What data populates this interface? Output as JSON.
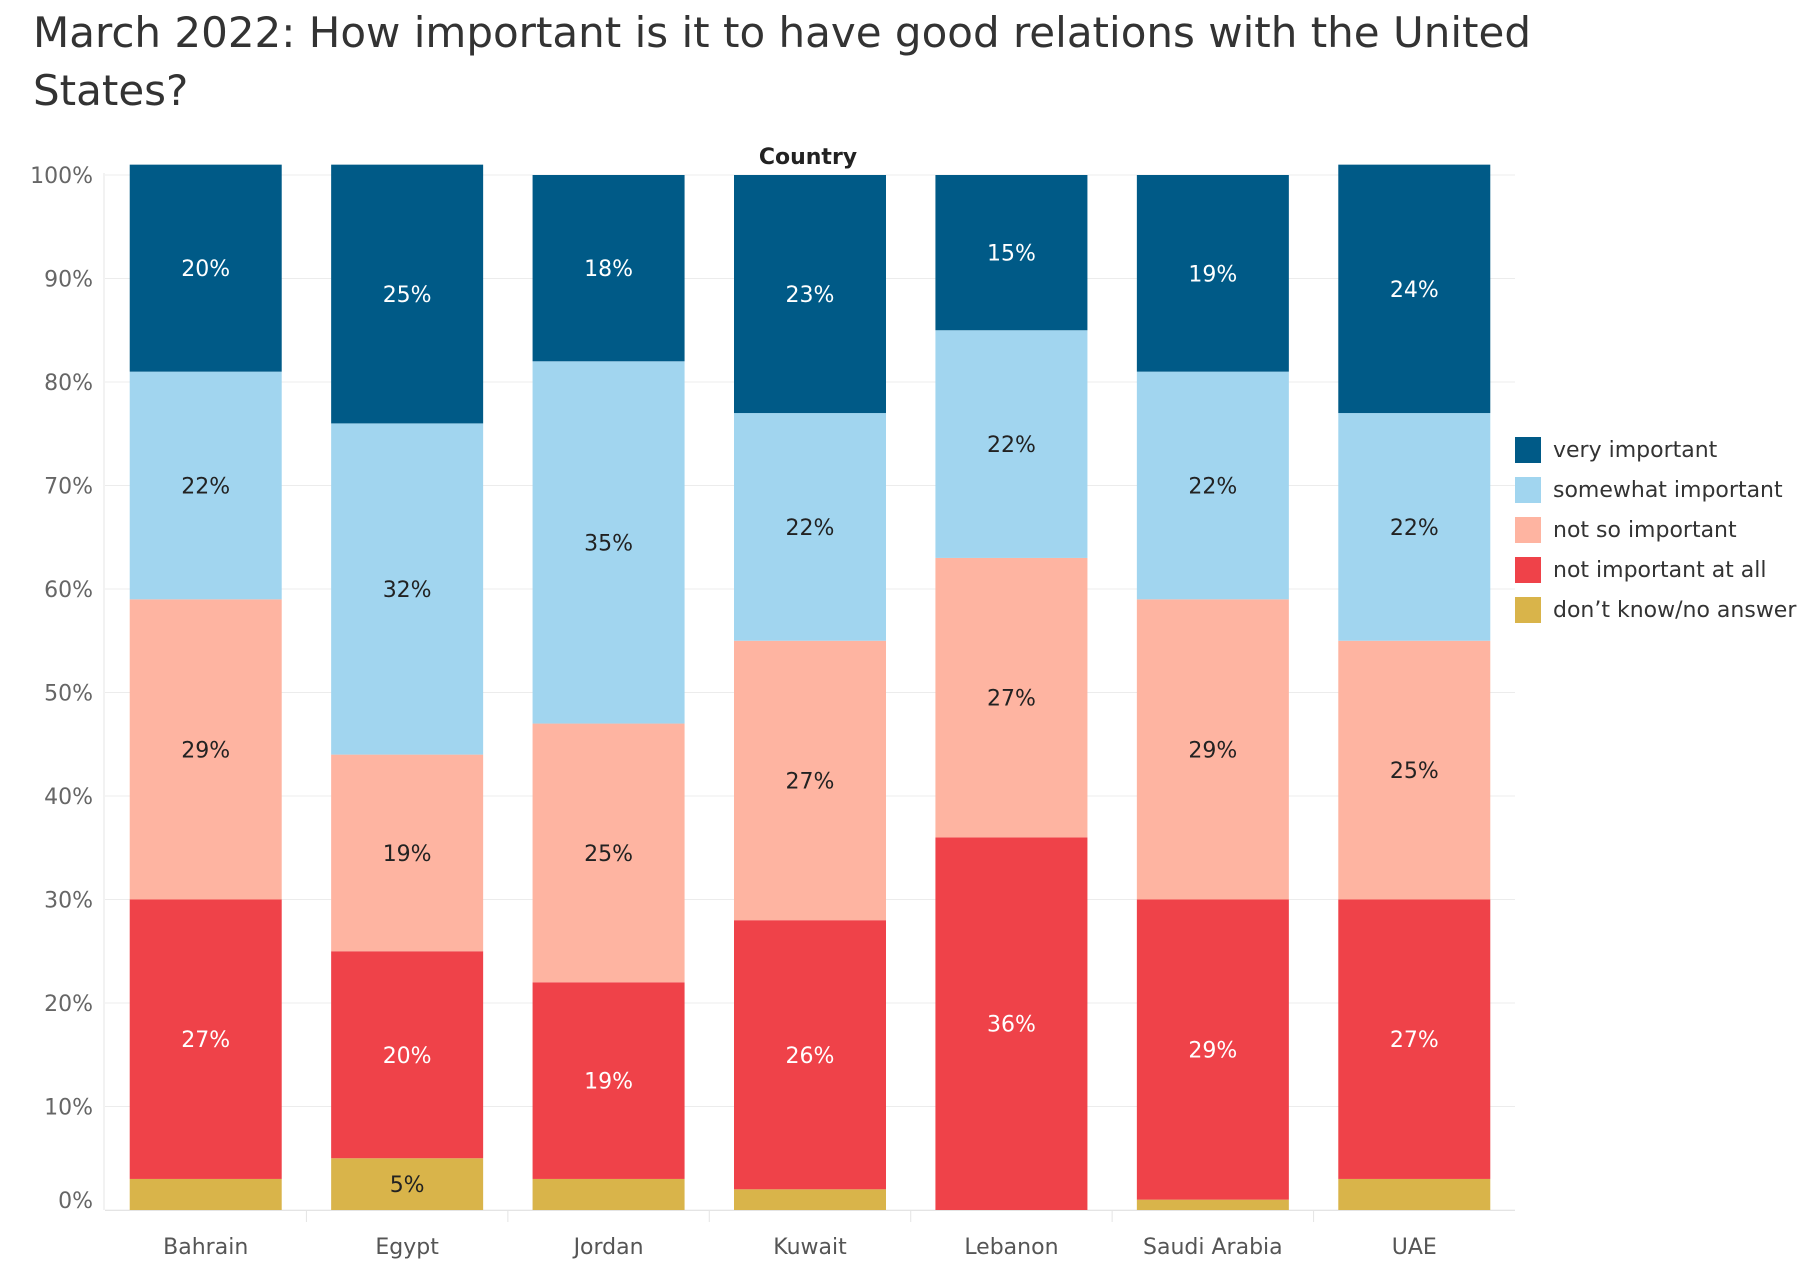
{
  "title": "March 2022: How important is it to have good relations with the United States?",
  "chart_data": {
    "type": "bar",
    "stacked": true,
    "column_header": "Country",
    "categories": [
      "Bahrain",
      "Egypt",
      "Jordan",
      "Kuwait",
      "Lebanon",
      "Saudi Arabia",
      "UAE"
    ],
    "series": [
      {
        "name": "don’t know/no answer",
        "color": "#D9B44A",
        "values": [
          3,
          5,
          3,
          2,
          0,
          1,
          3
        ],
        "labels": [
          "",
          "5%",
          "",
          "",
          "",
          "",
          ""
        ],
        "label_color": "#222222"
      },
      {
        "name": "not important at all",
        "color": "#EF4249",
        "values": [
          27,
          20,
          19,
          26,
          36,
          29,
          27
        ],
        "labels": [
          "27%",
          "20%",
          "19%",
          "26%",
          "36%",
          "29%",
          "27%"
        ],
        "label_color": "#FFFFFF"
      },
      {
        "name": "not so important",
        "color": "#FEB4A1",
        "values": [
          29,
          19,
          25,
          27,
          27,
          29,
          25
        ],
        "labels": [
          "29%",
          "19%",
          "25%",
          "27%",
          "27%",
          "29%",
          "25%"
        ],
        "label_color": "#222222"
      },
      {
        "name": "somewhat important",
        "color": "#A1D5EF",
        "values": [
          22,
          32,
          35,
          22,
          22,
          22,
          22
        ],
        "labels": [
          "22%",
          "32%",
          "35%",
          "22%",
          "22%",
          "22%",
          "22%"
        ],
        "label_color": "#222222"
      },
      {
        "name": "very important",
        "color": "#005A87",
        "values": [
          20,
          25,
          18,
          23,
          15,
          19,
          24
        ],
        "labels": [
          "20%",
          "25%",
          "18%",
          "23%",
          "15%",
          "19%",
          "24%"
        ],
        "label_color": "#FFFFFF"
      }
    ],
    "legend_order": [
      "very important",
      "somewhat important",
      "not so important",
      "not important at all",
      "don’t know/no answer"
    ],
    "yticks": [
      "0%",
      "10%",
      "20%",
      "30%",
      "40%",
      "50%",
      "60%",
      "70%",
      "80%",
      "90%",
      "100%"
    ],
    "ylim": [
      0,
      100
    ],
    "grid": true,
    "legend_position": "right"
  }
}
